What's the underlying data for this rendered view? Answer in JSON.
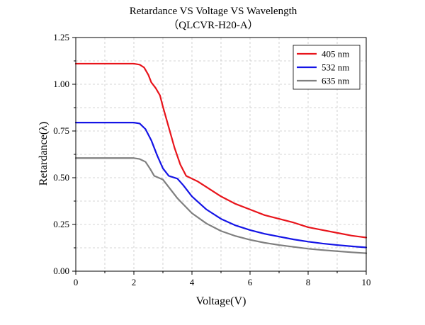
{
  "chart_data": {
    "type": "line",
    "title": "Retardance VS Voltage VS Wavelength",
    "subtitle": "（QLCVR-H20-A）",
    "xlabel": "Voltage(V)",
    "ylabel": "Retardance(λ)",
    "xlim": [
      0,
      10
    ],
    "ylim": [
      0,
      1.25
    ],
    "xticks": [
      "0",
      "2",
      "4",
      "6",
      "8",
      "10"
    ],
    "yticks": [
      "0.00",
      "0.25",
      "0.50",
      "0.75",
      "1.00",
      "1.25"
    ],
    "grid": true,
    "legend_position": "top-right",
    "series": [
      {
        "name": "405 nm",
        "color": "#e8141b",
        "points": [
          [
            0,
            1.11
          ],
          [
            1,
            1.11
          ],
          [
            2,
            1.11
          ],
          [
            2.2,
            1.105
          ],
          [
            2.35,
            1.09
          ],
          [
            2.5,
            1.05
          ],
          [
            2.6,
            1.01
          ],
          [
            2.75,
            0.98
          ],
          [
            2.9,
            0.94
          ],
          [
            3.0,
            0.88
          ],
          [
            3.2,
            0.77
          ],
          [
            3.4,
            0.66
          ],
          [
            3.6,
            0.57
          ],
          [
            3.8,
            0.51
          ],
          [
            4.0,
            0.495
          ],
          [
            4.2,
            0.48
          ],
          [
            4.5,
            0.45
          ],
          [
            5.0,
            0.4
          ],
          [
            5.5,
            0.36
          ],
          [
            6.0,
            0.33
          ],
          [
            6.5,
            0.3
          ],
          [
            7.0,
            0.28
          ],
          [
            7.5,
            0.26
          ],
          [
            8.0,
            0.235
          ],
          [
            8.5,
            0.22
          ],
          [
            9.0,
            0.205
          ],
          [
            9.5,
            0.19
          ],
          [
            10,
            0.18
          ]
        ]
      },
      {
        "name": "532 nm",
        "color": "#1414e6",
        "points": [
          [
            0,
            0.795
          ],
          [
            1,
            0.795
          ],
          [
            2,
            0.795
          ],
          [
            2.2,
            0.79
          ],
          [
            2.4,
            0.76
          ],
          [
            2.6,
            0.7
          ],
          [
            2.8,
            0.62
          ],
          [
            3.0,
            0.55
          ],
          [
            3.2,
            0.51
          ],
          [
            3.5,
            0.495
          ],
          [
            3.7,
            0.46
          ],
          [
            4.0,
            0.4
          ],
          [
            4.5,
            0.33
          ],
          [
            5.0,
            0.28
          ],
          [
            5.5,
            0.245
          ],
          [
            6.0,
            0.22
          ],
          [
            6.5,
            0.2
          ],
          [
            7.0,
            0.185
          ],
          [
            7.5,
            0.17
          ],
          [
            8.0,
            0.158
          ],
          [
            8.5,
            0.148
          ],
          [
            9.0,
            0.14
          ],
          [
            9.5,
            0.133
          ],
          [
            10,
            0.127
          ]
        ]
      },
      {
        "name": "635 nm",
        "color": "#7f7f7f",
        "points": [
          [
            0,
            0.605
          ],
          [
            1,
            0.605
          ],
          [
            2,
            0.605
          ],
          [
            2.2,
            0.6
          ],
          [
            2.4,
            0.585
          ],
          [
            2.55,
            0.55
          ],
          [
            2.7,
            0.51
          ],
          [
            2.85,
            0.5
          ],
          [
            3.0,
            0.49
          ],
          [
            3.2,
            0.45
          ],
          [
            3.5,
            0.39
          ],
          [
            4.0,
            0.31
          ],
          [
            4.5,
            0.255
          ],
          [
            5.0,
            0.215
          ],
          [
            5.5,
            0.188
          ],
          [
            6.0,
            0.168
          ],
          [
            6.5,
            0.152
          ],
          [
            7.0,
            0.14
          ],
          [
            7.5,
            0.13
          ],
          [
            8.0,
            0.12
          ],
          [
            8.5,
            0.113
          ],
          [
            9.0,
            0.107
          ],
          [
            9.5,
            0.101
          ],
          [
            10,
            0.096
          ]
        ]
      }
    ]
  }
}
